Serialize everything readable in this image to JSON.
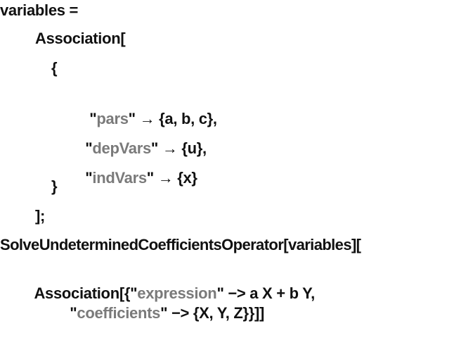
{
  "colors": {
    "text": "#111111",
    "string": "#7a7a7a",
    "background": "#ffffff"
  },
  "code": {
    "l1": "variables =",
    "l2": "Association[",
    "l3": "{",
    "l4": {
      "pre": "\"",
      "str": "pars",
      "post": "\" → {a, b, c},"
    },
    "l5": {
      "pre": "\"",
      "str": "depVars",
      "post": "\" → {u},"
    },
    "l6": {
      "pre": "\"",
      "str": "indVars",
      "post": "\" → {x}"
    },
    "l7": "}",
    "l8": "];",
    "l9": "SolveUndeterminedCoefficientsOperator[variables][",
    "l10": {
      "pre": "Association[{\"",
      "str": "expression",
      "post": "\" −> a X + b Y,"
    },
    "l11": {
      "pre": "\"",
      "str": "coefficients",
      "post": "\" −> {X, Y, Z}}]]"
    }
  }
}
